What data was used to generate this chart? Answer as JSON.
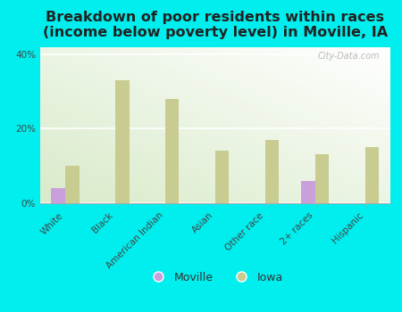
{
  "categories": [
    "White",
    "Black",
    "American Indian",
    "Asian",
    "Other race",
    "2+ races",
    "Hispanic"
  ],
  "moville": [
    4.0,
    0.0,
    0.0,
    0.0,
    0.0,
    6.0,
    0.0
  ],
  "iowa": [
    10.0,
    33.0,
    28.0,
    14.0,
    17.0,
    13.0,
    15.0
  ],
  "moville_color": "#c9a0dc",
  "iowa_color": "#c8cc90",
  "background_color": "#00eeee",
  "plot_bg_color": "#e8f0d8",
  "title_line1": "Breakdown of poor residents within races",
  "title_line2": "(income below poverty level) in Moville, IA",
  "ylabel_ticks": [
    "0%",
    "20%",
    "40%"
  ],
  "yticks": [
    0,
    20,
    40
  ],
  "ylim": [
    0,
    42
  ],
  "bar_width": 0.28,
  "title_fontsize": 11.5,
  "tick_fontsize": 7.5,
  "legend_fontsize": 9,
  "watermark": "City-Data.com"
}
